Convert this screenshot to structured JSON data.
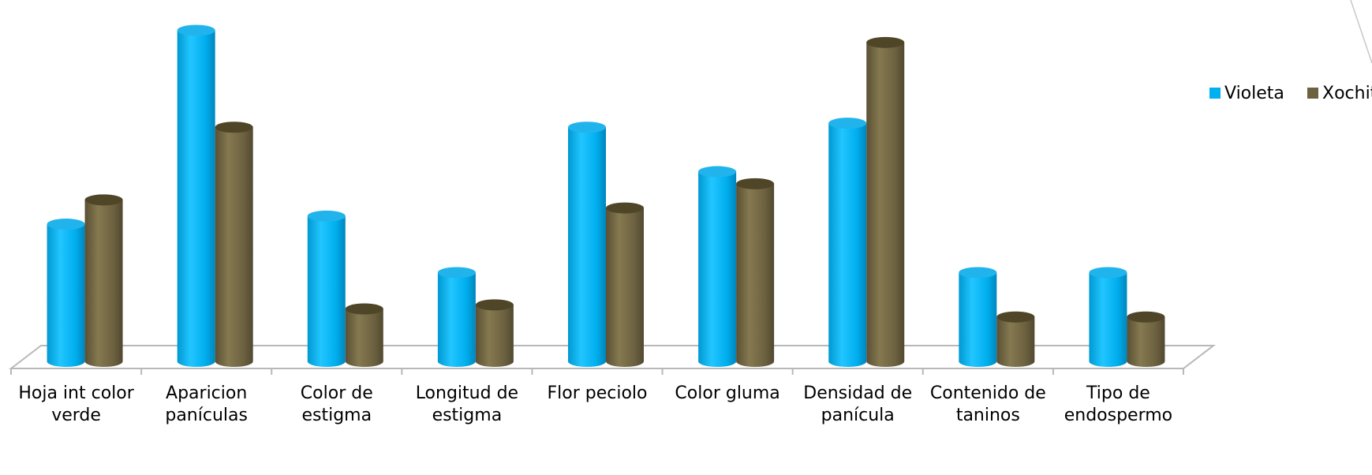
{
  "chart_data": {
    "type": "bar",
    "style": "3d-cylinder",
    "categories": [
      [
        "Hoja int color",
        "verde"
      ],
      [
        "Aparicion",
        "panículas"
      ],
      [
        "Color de",
        "estigma"
      ],
      [
        "Longitud de",
        "estigma"
      ],
      [
        "Flor peciolo"
      ],
      [
        "Color gluma"
      ],
      [
        "Densidad de",
        "panícula"
      ],
      [
        "Contenido de",
        "taninos"
      ],
      [
        "Tipo de",
        "endospermo"
      ]
    ],
    "series": [
      {
        "name": "Violeta",
        "color": "#00B0F0",
        "values": [
          1.7,
          4.1,
          1.8,
          1.1,
          2.9,
          2.35,
          2.95,
          1.1,
          1.1
        ]
      },
      {
        "name": "Xochitl",
        "color": "#6D6240",
        "values": [
          2.0,
          2.9,
          0.65,
          0.7,
          1.9,
          2.2,
          3.95,
          0.55,
          0.55
        ]
      }
    ],
    "ylim": [
      0,
      4.3
    ],
    "legend_position": "right",
    "grid": false,
    "title": "",
    "xlabel": "",
    "ylabel": ""
  }
}
